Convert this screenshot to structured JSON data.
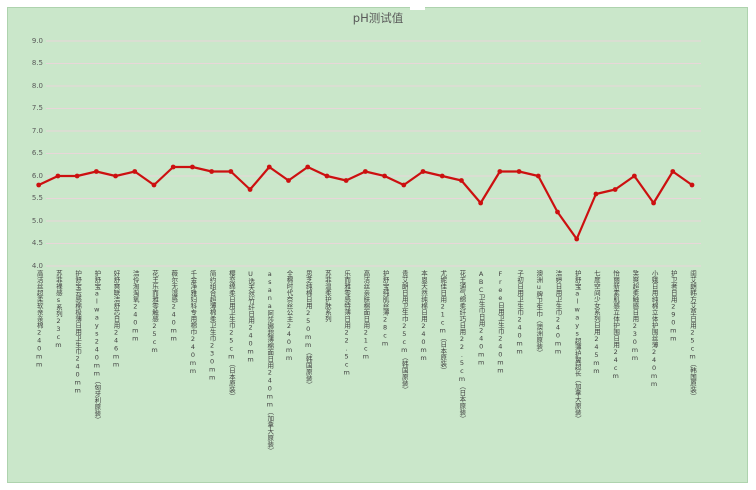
{
  "page": {
    "title": "pH测试值"
  },
  "colors": {
    "panel_bg": "#cae7ca",
    "panel_border": "#aed3ae",
    "gridline": "#e9d6d9",
    "series": "#cc1010",
    "tick_text": "#595959",
    "category_text": "#404040"
  },
  "chart_data": {
    "type": "line",
    "title": "pH测试值",
    "xlabel": "",
    "ylabel": "",
    "ylim": [
      4.0,
      9.0
    ],
    "ytick_step": 0.5,
    "yticks": [
      "9.0",
      "8.5",
      "8.0",
      "7.5",
      "7.0",
      "6.5",
      "6.0",
      "5.5",
      "5.0",
      "4.5",
      "4.0"
    ],
    "grid": true,
    "legend": "none",
    "marker": "circle",
    "series_color": "#cc1010",
    "categories": [
      "高洁丝超柔软亲亲棉240mm",
      "苏菲裸感s系列23cm",
      "护舒宝云感棉极薄日用卫生巾240mm",
      "护舒宝always240mm（匈牙利原装）",
      "好舒爽联洁舒芯日用246mm",
      "洁伶淘淘氧240mm",
      "花王乐而雅零触感25cm",
      "薇尔无湿感240mm",
      "千金净雅妇科专用棉巾240mm",
      "简约组合超薄棉柔卫生巾230mm",
      "樱恋绵柔日用卫生巾25cm（日本原装）",
      "U选天然竹纤日用240mm",
      "asana阿莎娜超薄棉面日用240mm（加拿大原装）",
      "全棉时代奈丝公主240mm",
      "思芝纯棉日用250mm（韩国原装）",
      "苏菲温柔护肤系列",
      "乐而雅零感特薄日用22.5cm",
      "高洁丝亲肤棉面日用21cm",
      "护舒宝纯肌丝薄28cm",
      "贵艾朗日用卫生巾25cm（韩国原装）",
      "本恩天然纯棉日用240mm",
      "尤妮佳日用21cm（日本原装）",
      "花王通气绵柔纤巧日用22.5cm（日本原装）",
      "ABC卫生巾日用240mm",
      "Free日用卫生巾240mm",
      "子初日用卫生巾240mm",
      "澳洲u牌卫生巾（澳洲原装）",
      "洁婷日用卫生巾240mm",
      "护舒宝always超薄护翼超长（加拿大原装）",
      "七度空间少女系列日用245mm",
      "怡丽新素肌感立体护围日用24cm",
      "笑爽超柔触感日用230mm",
      "小娥日用纯棉立体护围丝薄240mm",
      "护卫者日用290mm",
      "闺艾朗韩方艾草日用25cm（韩国原装）"
    ],
    "values": [
      5.8,
      6.0,
      6.0,
      6.1,
      6.0,
      6.1,
      5.8,
      6.2,
      6.2,
      6.1,
      6.1,
      5.7,
      6.2,
      5.9,
      6.2,
      6.0,
      5.9,
      6.1,
      6.0,
      5.8,
      6.1,
      6.0,
      5.9,
      5.4,
      6.1,
      6.1,
      6.0,
      5.2,
      4.6,
      5.6,
      5.7,
      6.0,
      5.4,
      6.1,
      5.8
    ]
  }
}
